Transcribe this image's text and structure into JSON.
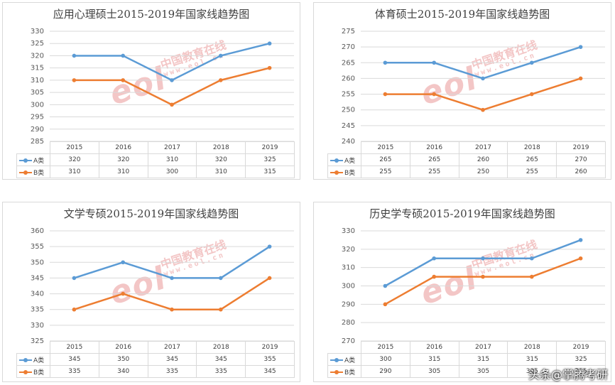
{
  "colors": {
    "a": "#5b9bd5",
    "b": "#ed7d31",
    "grid": "#d9d9d9",
    "axis_text": "#595959"
  },
  "footer_tag": "头条@掌腾考研",
  "watermark": {
    "eol": "eol",
    "cn": "中国教育在线",
    "url": "www.eol.cn"
  },
  "chart_data": [
    {
      "type": "line",
      "title": "应用心理硕士2015-2019年国家线趋势图",
      "categories": [
        "2015",
        "2016",
        "2017",
        "2018",
        "2019"
      ],
      "ylim": [
        285,
        330
      ],
      "ystep": 5,
      "yticks": [
        "285",
        "290",
        "295",
        "300",
        "305",
        "310",
        "315",
        "320",
        "325",
        "330"
      ],
      "series": [
        {
          "name": "A类",
          "values": [
            320,
            320,
            310,
            320,
            325
          ],
          "labels": [
            "320",
            "320",
            "310",
            "320",
            "325"
          ]
        },
        {
          "name": "B类",
          "values": [
            310,
            310,
            300,
            310,
            315
          ],
          "labels": [
            "310",
            "310",
            "300",
            "310",
            "315"
          ]
        }
      ]
    },
    {
      "type": "line",
      "title": "体育硕士2015-2019年国家线趋势图",
      "categories": [
        "2015",
        "2016",
        "2017",
        "2018",
        "2019"
      ],
      "ylim": [
        240,
        275
      ],
      "ystep": 5,
      "yticks": [
        "240",
        "245",
        "250",
        "255",
        "260",
        "265",
        "270",
        "275"
      ],
      "series": [
        {
          "name": "A类",
          "values": [
            265,
            265,
            260,
            265,
            270
          ],
          "labels": [
            "265",
            "265",
            "260",
            "265",
            "270"
          ]
        },
        {
          "name": "B类",
          "values": [
            255,
            255,
            250,
            255,
            260
          ],
          "labels": [
            "255",
            "255",
            "250",
            "255",
            "260"
          ]
        }
      ]
    },
    {
      "type": "line",
      "title": "文学专硕2015-2019年国家线趋势图",
      "categories": [
        "2015",
        "2016",
        "2017",
        "2018",
        "2019"
      ],
      "ylim": [
        325,
        360
      ],
      "ystep": 5,
      "yticks": [
        "325",
        "330",
        "335",
        "340",
        "345",
        "350",
        "355",
        "360"
      ],
      "series": [
        {
          "name": "A类",
          "values": [
            345,
            350,
            345,
            345,
            355
          ],
          "labels": [
            "345",
            "350",
            "345",
            "345",
            "355"
          ]
        },
        {
          "name": "B类",
          "values": [
            335,
            340,
            335,
            335,
            345
          ],
          "labels": [
            "335",
            "340",
            "335",
            "335",
            "345"
          ]
        }
      ]
    },
    {
      "type": "line",
      "title": "历史学专硕2015-2019年国家线趋势图",
      "categories": [
        "2015",
        "2016",
        "2017",
        "2018",
        "2019"
      ],
      "ylim": [
        270,
        330
      ],
      "ystep": 10,
      "yticks": [
        "270",
        "280",
        "290",
        "300",
        "310",
        "320",
        "330"
      ],
      "series": [
        {
          "name": "A类",
          "values": [
            300,
            315,
            315,
            315,
            325
          ],
          "labels": [
            "300",
            "315",
            "315",
            "315",
            "325"
          ]
        },
        {
          "name": "B类",
          "values": [
            290,
            305,
            305,
            305,
            315
          ],
          "labels": [
            "290",
            "305",
            "305",
            "305",
            "315"
          ]
        }
      ]
    }
  ]
}
